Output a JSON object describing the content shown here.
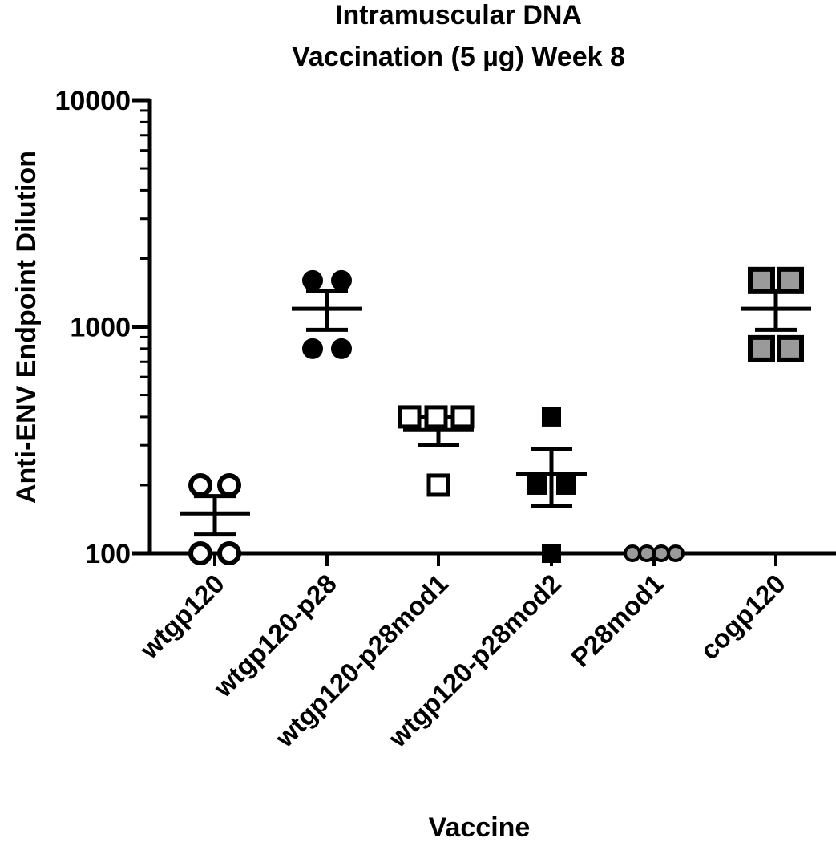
{
  "chart_data": {
    "type": "scatter",
    "title_lines": [
      "Intramuscular DNA",
      "Vaccination (5 µg) Week 8"
    ],
    "xlabel": "Vaccine",
    "ylabel": "Anti-ENV Endpoint Dilution",
    "y_scale": "log",
    "ylim": [
      100,
      10000
    ],
    "y_ticks": [
      100,
      1000,
      10000
    ],
    "y_tick_labels": [
      "100",
      "1000",
      "10000"
    ],
    "categories": [
      "wtgp120",
      "wtgp120-p28",
      "wtgp120-p28mod1",
      "wtgp120-p28mod2",
      "P28mod1",
      "cogp120"
    ],
    "category_labels": [
      "wtgp120",
      "wtgp120-p28",
      "wtgp120-p28mod1",
      "wtgp120-p28mod2",
      "P28mod1",
      "cogp120"
    ],
    "series": [
      {
        "category": "wtgp120",
        "marker": "open-circle",
        "color": "#000000",
        "points": [
          200,
          200,
          100,
          100
        ],
        "mean": 150,
        "sem": 29
      },
      {
        "category": "wtgp120-p28",
        "marker": "filled-circle",
        "color": "#000000",
        "points": [
          1600,
          1600,
          800,
          800
        ],
        "mean": 1200,
        "sem": 231
      },
      {
        "category": "wtgp120-p28mod1",
        "marker": "open-square",
        "color": "#000000",
        "points": [
          400,
          400,
          400,
          200
        ],
        "mean": 350,
        "sem": 50
      },
      {
        "category": "wtgp120-p28mod2",
        "marker": "filled-square",
        "color": "#000000",
        "points": [
          400,
          200,
          200,
          100
        ],
        "mean": 225,
        "sem": 63
      },
      {
        "category": "P28mod1",
        "marker": "open-circle-gray",
        "color": "#9a9a9a",
        "points": [
          100,
          100,
          100,
          100
        ],
        "mean": 100,
        "sem": 0
      },
      {
        "category": "cogp120",
        "marker": "gray-square",
        "color": "#9a9a9a",
        "points": [
          1600,
          1600,
          800,
          800
        ],
        "mean": 1200,
        "sem": 231
      }
    ]
  }
}
